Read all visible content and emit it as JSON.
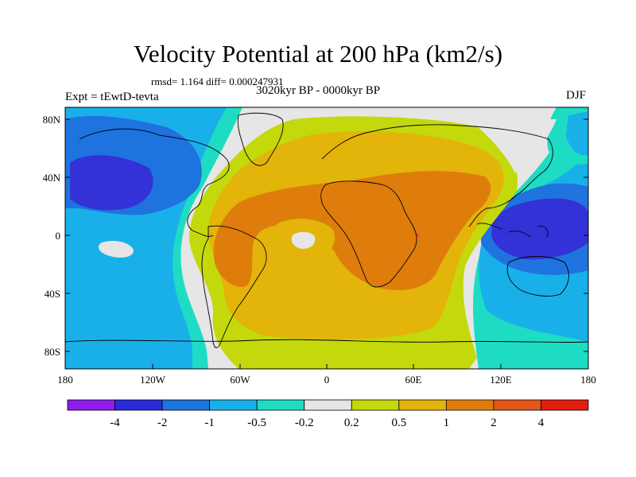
{
  "title": "Velocity Potential at 200 hPa (km2/s)",
  "stats": "rmsd= 1.164 diff= 0.000247931",
  "period": "3020kyr BP - 0000kyr BP",
  "experiment": "Expt = tEwtD-tevta",
  "season": "DJF",
  "map": {
    "lat_ticks": [
      "80N",
      "40N",
      "0",
      "40S",
      "80S"
    ],
    "lon_ticks": [
      "180",
      "120W",
      "60W",
      "0",
      "60E",
      "120E",
      "180"
    ]
  },
  "colorbar": {
    "labels": [
      "-4",
      "-2",
      "-1",
      "-0.5",
      "-0.2",
      "0.2",
      "0.5",
      "1",
      "2",
      "4"
    ],
    "colors": [
      "#8d1dea",
      "#2a2adb",
      "#1f73de",
      "#19b0ea",
      "#1edcc4",
      "#e6e6e6",
      "#c3d90b",
      "#e3b40a",
      "#de7d0c",
      "#e4561a",
      "#e31c10"
    ]
  },
  "field_colors": {
    "very_negative": "#3232d6",
    "negative": "#1f73de",
    "moderate_negative": "#19b0ea",
    "weak_negative": "#1edcc4",
    "neutral": "#e6e6e6",
    "weak_positive": "#c3d90b",
    "moderate_positive": "#e3b40a",
    "positive": "#de7d0c",
    "strong_positive": "#e4561a"
  }
}
